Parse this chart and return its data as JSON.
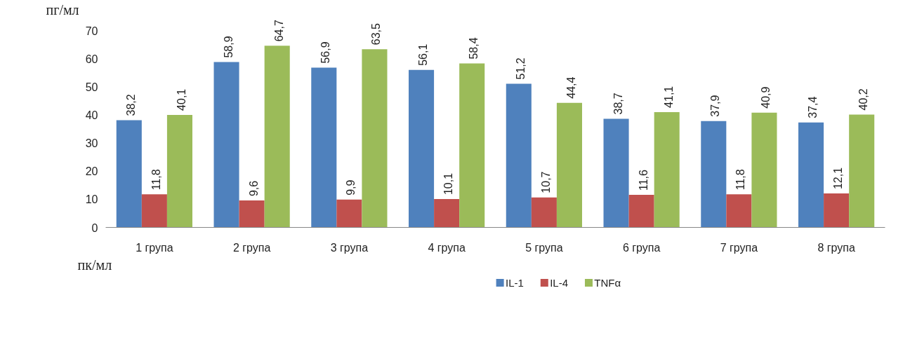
{
  "chart_data": {
    "type": "bar",
    "ylabel": "пг/мл",
    "annotations": [
      "пк/мл"
    ],
    "categories": [
      "1 група",
      "2 група",
      "3 група",
      "4 група",
      "5 група",
      "6 група",
      "7 група",
      "8 група"
    ],
    "series": [
      {
        "name": "IL-1",
        "color": "#4f81bd",
        "values": [
          38.2,
          58.9,
          56.9,
          56.1,
          51.2,
          38.7,
          37.9,
          37.4
        ],
        "value_labels": [
          "38,2",
          "58,9",
          "56,9",
          "56,1",
          "51,2",
          "38,7",
          "37,9",
          "37,4"
        ]
      },
      {
        "name": "IL-4",
        "color": "#c0504d",
        "values": [
          11.8,
          9.6,
          9.9,
          10.1,
          10.7,
          11.6,
          11.8,
          12.1
        ],
        "value_labels": [
          "11,8",
          "9,6",
          "9,9",
          "10,1",
          "10,7",
          "11,6",
          "11,8",
          "12,1"
        ]
      },
      {
        "name": "TNFα",
        "color": "#9bbb59",
        "values": [
          40.1,
          64.7,
          63.5,
          58.4,
          44.4,
          41.1,
          40.9,
          40.2
        ],
        "value_labels": [
          "40,1",
          "64,7",
          "63,5",
          "58,4",
          "44,4",
          "41,1",
          "40,9",
          "40,2"
        ]
      }
    ],
    "ylim": [
      0,
      70
    ],
    "yticks": [
      0,
      10,
      20,
      30,
      40,
      50,
      60,
      70
    ],
    "grid": false,
    "legend": "bottom"
  }
}
